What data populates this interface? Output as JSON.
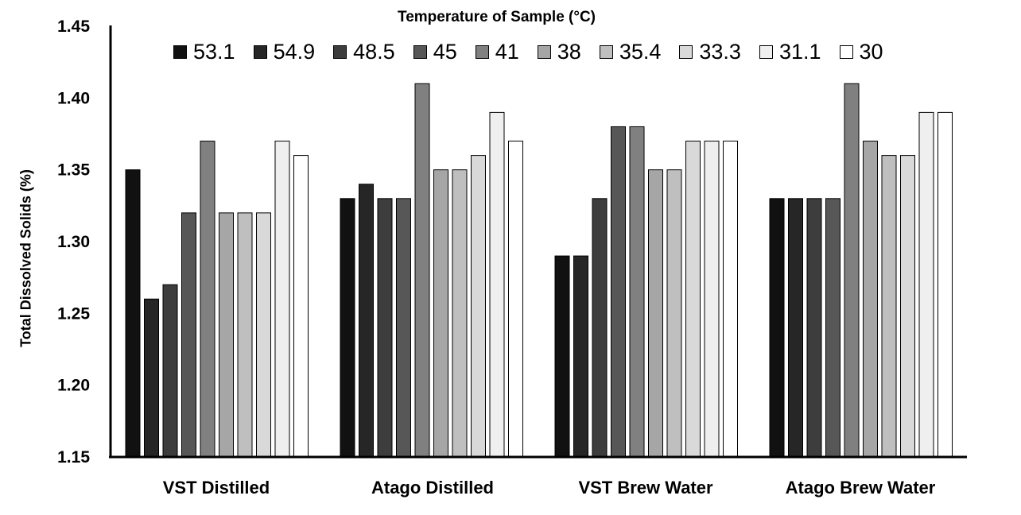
{
  "chart_data": {
    "type": "bar",
    "legend_title": "Temperature of Sample (°C)",
    "ylabel": "Total Dissolved Solids (%)",
    "xlabel": "",
    "ylim": [
      1.15,
      1.45
    ],
    "yticks": [
      "1.15",
      "1.20",
      "1.25",
      "1.30",
      "1.35",
      "1.40",
      "1.45"
    ],
    "grid": false,
    "legend_position": "top",
    "categories": [
      "VST Distilled",
      "Atago Distilled",
      "VST Brew Water",
      "Atago Brew Water"
    ],
    "series": [
      {
        "name": "53.1",
        "color": "#111111",
        "values": [
          1.35,
          1.33,
          1.29,
          1.33
        ]
      },
      {
        "name": "54.9",
        "color": "#262626",
        "values": [
          1.26,
          1.34,
          1.29,
          1.33
        ]
      },
      {
        "name": "48.5",
        "color": "#3d3d3d",
        "values": [
          1.27,
          1.33,
          1.33,
          1.33
        ]
      },
      {
        "name": "45",
        "color": "#575757",
        "values": [
          1.32,
          1.33,
          1.38,
          1.33
        ]
      },
      {
        "name": "41",
        "color": "#808080",
        "values": [
          1.37,
          1.41,
          1.38,
          1.41
        ]
      },
      {
        "name": "38",
        "color": "#a6a6a6",
        "values": [
          1.32,
          1.35,
          1.35,
          1.37
        ]
      },
      {
        "name": "35.4",
        "color": "#bfbfbf",
        "values": [
          1.32,
          1.35,
          1.35,
          1.36
        ]
      },
      {
        "name": "33.3",
        "color": "#d9d9d9",
        "values": [
          1.32,
          1.36,
          1.37,
          1.36
        ]
      },
      {
        "name": "31.1",
        "color": "#efefef",
        "values": [
          1.37,
          1.39,
          1.37,
          1.39
        ]
      },
      {
        "name": "30",
        "color": "#ffffff",
        "values": [
          1.36,
          1.37,
          1.37,
          1.39
        ]
      }
    ]
  }
}
